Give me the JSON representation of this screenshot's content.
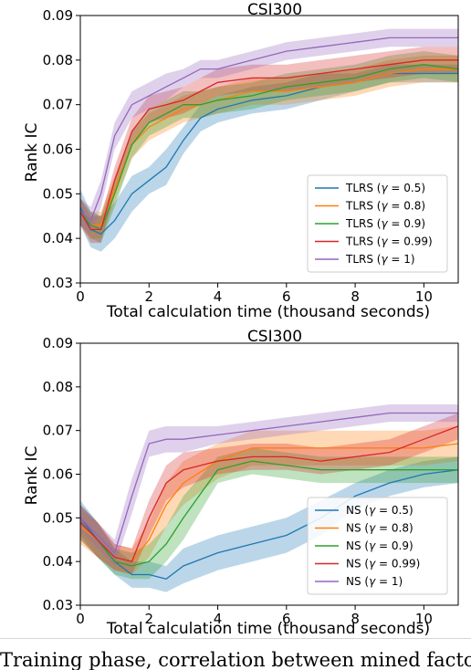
{
  "caption_text": "Training phase, correlation between mined factors",
  "chart_data": [
    {
      "type": "line",
      "title": "CSI300",
      "xlabel": "Total calculation time (thousand seconds)",
      "ylabel": "Rank IC",
      "xlim": [
        0,
        11
      ],
      "ylim": [
        0.03,
        0.09
      ],
      "xticks": [
        "0",
        "2",
        "4",
        "6",
        "8",
        "10"
      ],
      "yticks": [
        "0.03",
        "0.04",
        "0.05",
        "0.06",
        "0.07",
        "0.08",
        "0.09"
      ],
      "grid": false,
      "legend_position": "lower-right",
      "series": [
        {
          "name": "TLRS (γ = 0.5)",
          "legend_prefix": "TLRS (",
          "legend_suffix": " = 0.5)",
          "color": "#1f77b4",
          "x": [
            0,
            0.3,
            0.6,
            1,
            1.5,
            2,
            2.5,
            3,
            3.5,
            4,
            5,
            6,
            7,
            8,
            9,
            10,
            11
          ],
          "y": [
            0.047,
            0.042,
            0.041,
            0.044,
            0.05,
            0.053,
            0.056,
            0.062,
            0.067,
            0.069,
            0.071,
            0.072,
            0.074,
            0.075,
            0.077,
            0.077,
            0.077
          ],
          "band": [
            0.004,
            0.004,
            0.004,
            0.004,
            0.004,
            0.003,
            0.004,
            0.003,
            0.003,
            0.003,
            0.003,
            0.003,
            0.003,
            0.002,
            0.002,
            0.002,
            0.002
          ]
        },
        {
          "name": "TLRS (γ = 0.8)",
          "legend_prefix": "TLRS (",
          "legend_suffix": " = 0.8)",
          "color": "#ff7f0e",
          "x": [
            0,
            0.3,
            0.6,
            1,
            1.5,
            2,
            2.5,
            3,
            3.5,
            4,
            5,
            6,
            7,
            8,
            9,
            10,
            11
          ],
          "y": [
            0.046,
            0.043,
            0.043,
            0.051,
            0.061,
            0.065,
            0.067,
            0.069,
            0.07,
            0.071,
            0.073,
            0.073,
            0.074,
            0.075,
            0.077,
            0.078,
            0.078
          ],
          "band": [
            0.003,
            0.003,
            0.003,
            0.003,
            0.003,
            0.003,
            0.003,
            0.003,
            0.003,
            0.003,
            0.003,
            0.003,
            0.003,
            0.003,
            0.003,
            0.003,
            0.003
          ]
        },
        {
          "name": "TLRS (γ = 0.9)",
          "legend_prefix": "TLRS (",
          "legend_suffix": " = 0.9)",
          "color": "#2ca02c",
          "x": [
            0,
            0.3,
            0.6,
            1,
            1.5,
            2,
            2.5,
            3,
            3.5,
            4,
            5,
            6,
            7,
            8,
            9,
            10,
            11
          ],
          "y": [
            0.046,
            0.043,
            0.042,
            0.05,
            0.061,
            0.066,
            0.068,
            0.07,
            0.07,
            0.071,
            0.072,
            0.074,
            0.075,
            0.076,
            0.078,
            0.079,
            0.078
          ],
          "band": [
            0.003,
            0.003,
            0.003,
            0.003,
            0.003,
            0.003,
            0.003,
            0.003,
            0.003,
            0.003,
            0.003,
            0.003,
            0.003,
            0.003,
            0.003,
            0.003,
            0.003
          ]
        },
        {
          "name": "TLRS (γ = 0.99)",
          "legend_prefix": "TLRS (",
          "legend_suffix": " = 0.99)",
          "color": "#d62728",
          "x": [
            0,
            0.3,
            0.6,
            1,
            1.5,
            2,
            2.5,
            3,
            3.5,
            4,
            5,
            6,
            7,
            8,
            9,
            10,
            11
          ],
          "y": [
            0.046,
            0.042,
            0.042,
            0.053,
            0.064,
            0.069,
            0.07,
            0.071,
            0.073,
            0.075,
            0.076,
            0.076,
            0.077,
            0.078,
            0.079,
            0.08,
            0.08
          ],
          "band": [
            0.003,
            0.003,
            0.003,
            0.003,
            0.003,
            0.003,
            0.003,
            0.003,
            0.003,
            0.003,
            0.003,
            0.003,
            0.003,
            0.003,
            0.003,
            0.003,
            0.003
          ]
        },
        {
          "name": "TLRS (γ = 1)",
          "legend_prefix": "TLRS (",
          "legend_suffix": " = 1)",
          "color": "#9467bd",
          "x": [
            0,
            0.3,
            0.6,
            1,
            1.5,
            2,
            2.5,
            3,
            3.5,
            4,
            5,
            6,
            7,
            8,
            9,
            10,
            11
          ],
          "y": [
            0.046,
            0.044,
            0.05,
            0.063,
            0.07,
            0.072,
            0.074,
            0.076,
            0.078,
            0.078,
            0.08,
            0.082,
            0.083,
            0.084,
            0.085,
            0.085,
            0.085
          ],
          "band": [
            0.003,
            0.003,
            0.003,
            0.003,
            0.003,
            0.003,
            0.003,
            0.002,
            0.002,
            0.002,
            0.002,
            0.002,
            0.002,
            0.002,
            0.002,
            0.002,
            0.002
          ]
        }
      ]
    },
    {
      "type": "line",
      "title": "CSI300",
      "xlabel": "Total calculation time (thousand seconds)",
      "ylabel": "Rank IC",
      "xlim": [
        0,
        11
      ],
      "ylim": [
        0.03,
        0.09
      ],
      "xticks": [
        "0",
        "2",
        "4",
        "6",
        "8",
        "10"
      ],
      "yticks": [
        "0.03",
        "0.04",
        "0.05",
        "0.06",
        "0.07",
        "0.08",
        "0.09"
      ],
      "grid": false,
      "legend_position": "lower-right",
      "series": [
        {
          "name": "NS (γ = 0.5)",
          "legend_prefix": "NS (",
          "legend_suffix": " = 0.5)",
          "color": "#1f77b4",
          "x": [
            0,
            0.5,
            1,
            1.5,
            2,
            2.5,
            3,
            4,
            5,
            6,
            7,
            8,
            9,
            10,
            11
          ],
          "y": [
            0.05,
            0.045,
            0.04,
            0.037,
            0.037,
            0.036,
            0.039,
            0.042,
            0.044,
            0.046,
            0.05,
            0.055,
            0.058,
            0.06,
            0.061
          ],
          "band": [
            0.004,
            0.004,
            0.003,
            0.003,
            0.003,
            0.003,
            0.004,
            0.004,
            0.004,
            0.004,
            0.004,
            0.003,
            0.003,
            0.003,
            0.003
          ]
        },
        {
          "name": "NS (γ = 0.8)",
          "legend_prefix": "NS (",
          "legend_suffix": " = 0.8)",
          "color": "#ff7f0e",
          "x": [
            0,
            0.5,
            1,
            1.5,
            2,
            2.5,
            3,
            4,
            5,
            6,
            7,
            8,
            9,
            10,
            11
          ],
          "y": [
            0.048,
            0.045,
            0.041,
            0.04,
            0.045,
            0.053,
            0.058,
            0.063,
            0.066,
            0.066,
            0.066,
            0.066,
            0.066,
            0.066,
            0.067
          ],
          "band": [
            0.004,
            0.004,
            0.003,
            0.003,
            0.004,
            0.005,
            0.005,
            0.004,
            0.004,
            0.004,
            0.004,
            0.004,
            0.004,
            0.004,
            0.004
          ]
        },
        {
          "name": "NS (γ = 0.9)",
          "legend_prefix": "NS (",
          "legend_suffix": " = 0.9)",
          "color": "#2ca02c",
          "x": [
            0,
            0.5,
            1,
            1.5,
            2,
            2.5,
            3,
            4,
            5,
            6,
            7,
            8,
            9,
            10,
            11
          ],
          "y": [
            0.049,
            0.045,
            0.04,
            0.039,
            0.04,
            0.044,
            0.05,
            0.061,
            0.063,
            0.062,
            0.061,
            0.061,
            0.061,
            0.061,
            0.061
          ],
          "band": [
            0.004,
            0.004,
            0.003,
            0.003,
            0.004,
            0.004,
            0.005,
            0.003,
            0.003,
            0.003,
            0.003,
            0.003,
            0.003,
            0.003,
            0.003
          ]
        },
        {
          "name": "NS (γ = 0.99)",
          "legend_prefix": "NS (",
          "legend_suffix": " = 0.99)",
          "color": "#d62728",
          "x": [
            0,
            0.5,
            1,
            1.5,
            2,
            2.5,
            3,
            4,
            5,
            6,
            7,
            8,
            9,
            10,
            11
          ],
          "y": [
            0.049,
            0.045,
            0.041,
            0.04,
            0.05,
            0.058,
            0.061,
            0.063,
            0.064,
            0.064,
            0.063,
            0.064,
            0.065,
            0.068,
            0.071
          ],
          "band": [
            0.004,
            0.004,
            0.003,
            0.003,
            0.004,
            0.004,
            0.004,
            0.003,
            0.003,
            0.003,
            0.003,
            0.003,
            0.003,
            0.003,
            0.003
          ]
        },
        {
          "name": "NS (γ = 1)",
          "legend_prefix": "NS (",
          "legend_suffix": " = 1)",
          "color": "#9467bd",
          "x": [
            0,
            0.5,
            1,
            1.5,
            2,
            2.5,
            3,
            4,
            5,
            6,
            7,
            8,
            9,
            10,
            11
          ],
          "y": [
            0.05,
            0.046,
            0.042,
            0.055,
            0.067,
            0.068,
            0.068,
            0.069,
            0.07,
            0.071,
            0.072,
            0.073,
            0.074,
            0.074,
            0.074
          ],
          "band": [
            0.003,
            0.003,
            0.003,
            0.004,
            0.003,
            0.003,
            0.003,
            0.002,
            0.002,
            0.002,
            0.002,
            0.002,
            0.002,
            0.002,
            0.002
          ]
        }
      ]
    }
  ]
}
